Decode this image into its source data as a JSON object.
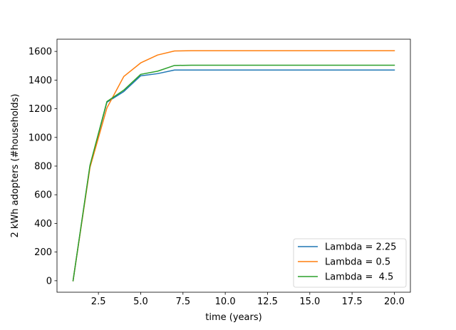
{
  "chart_data": {
    "type": "line",
    "title": "",
    "xlabel": "time (years)",
    "ylabel": "2 kWh adopters (#households)",
    "xlim": [
      0.05,
      20.95
    ],
    "ylim": [
      -80.25,
      1685.25
    ],
    "xticks": [
      2.5,
      5.0,
      7.5,
      10.0,
      12.5,
      15.0,
      17.5,
      20.0
    ],
    "xtick_labels": [
      "2.5",
      "5.0",
      "7.5",
      "10.0",
      "12.5",
      "15.0",
      "17.5",
      "20.0"
    ],
    "yticks": [
      0,
      200,
      400,
      600,
      800,
      1000,
      1200,
      1400,
      1600
    ],
    "ytick_labels": [
      "0",
      "200",
      "400",
      "600",
      "800",
      "1000",
      "1200",
      "1400",
      "1600"
    ],
    "grid": false,
    "legend_position": "lower right",
    "x": [
      1,
      2,
      3,
      4,
      5,
      6,
      7,
      8,
      9,
      10,
      11,
      12,
      13,
      14,
      15,
      16,
      17,
      18,
      19,
      20
    ],
    "series": [
      {
        "name": "Lambda = 2.25",
        "color": "#1f77b4",
        "values": [
          0,
          800,
          1245,
          1320,
          1430,
          1445,
          1470,
          1470,
          1470,
          1470,
          1470,
          1470,
          1470,
          1470,
          1470,
          1470,
          1470,
          1470,
          1470,
          1470
        ]
      },
      {
        "name": "Lambda = 0.5",
        "color": "#ff7f0e",
        "values": [
          0,
          790,
          1205,
          1425,
          1520,
          1575,
          1603,
          1605,
          1605,
          1605,
          1605,
          1605,
          1605,
          1605,
          1605,
          1605,
          1605,
          1605,
          1605,
          1605
        ]
      },
      {
        "name": "Lambda =  4.5",
        "color": "#2ca02c",
        "values": [
          0,
          805,
          1250,
          1330,
          1440,
          1462,
          1502,
          1504,
          1504,
          1504,
          1504,
          1504,
          1504,
          1504,
          1504,
          1504,
          1504,
          1504,
          1504,
          1504
        ]
      }
    ]
  }
}
